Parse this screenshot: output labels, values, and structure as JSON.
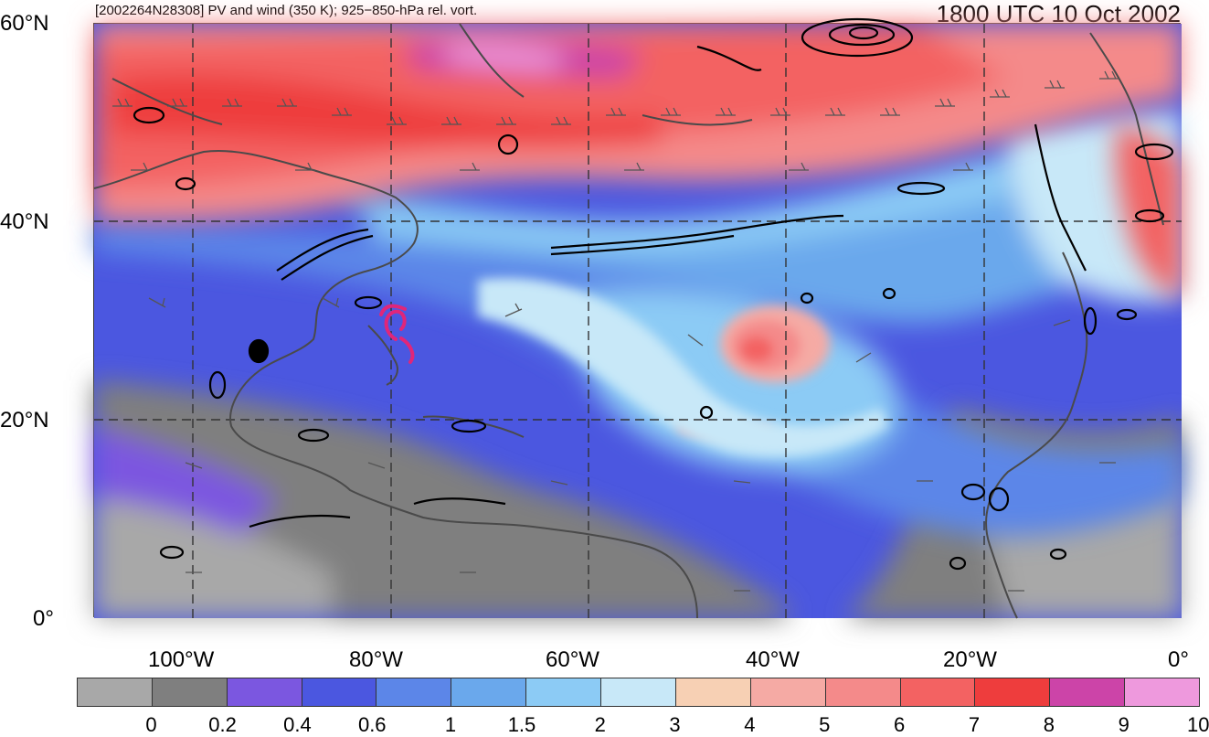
{
  "header": {
    "left_title": "[2002264N28308] PV and wind (350 K); 925−850-hPa rel. vort.",
    "right_title": "1800 UTC 10 Oct 2002"
  },
  "map": {
    "lat_labels": [
      "60°N",
      "40°N",
      "20°N",
      "0°"
    ],
    "lon_labels": [
      "100°W",
      "80°W",
      "60°W",
      "40°W",
      "20°W",
      "0°"
    ],
    "gridlines": "dashed",
    "storm_marker_color": "#e0267a",
    "overlays": [
      "potential-vorticity-shading",
      "wind-barbs",
      "relative-vorticity-contours",
      "coastlines"
    ]
  },
  "colorbar": {
    "colors": [
      "#a8a8a8",
      "#7f7f7f",
      "#7b57e0",
      "#4b57e0",
      "#5c86e8",
      "#6aa8ec",
      "#8ccbf5",
      "#c8e8f8",
      "#f7d0b4",
      "#f5aaa4",
      "#f48a8a",
      "#f36262",
      "#ee3d3d",
      "#cc44a8",
      "#ee99dd"
    ],
    "labels": [
      "0",
      "0.2",
      "0.4",
      "0.6",
      "1",
      "1.5",
      "2",
      "3",
      "4",
      "5",
      "6",
      "7",
      "8",
      "9",
      "10"
    ]
  }
}
